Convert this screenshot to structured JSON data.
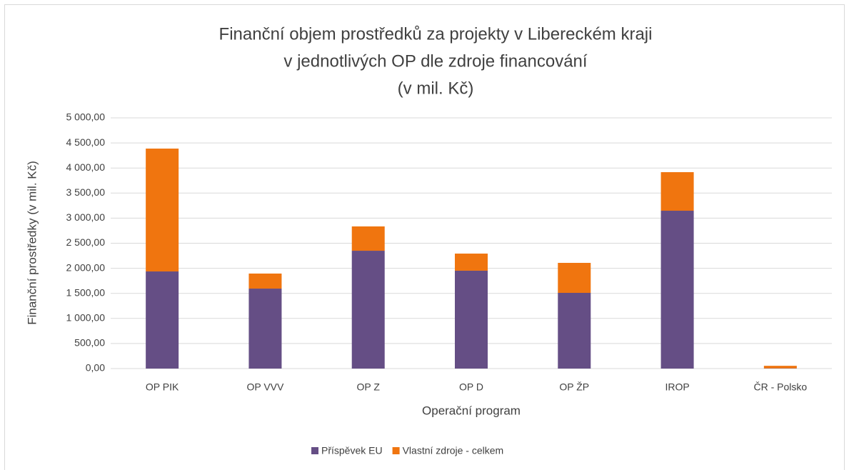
{
  "chart_data": {
    "type": "stacked_bar",
    "title": [
      "Finanční objem prostředků za projekty v Libereckém kraji",
      "v jednotlivých OP dle zdroje financování",
      "(v mil. Kč)"
    ],
    "x_label": "Operační program",
    "y_label": "Finanční prostředky (v mil. Kč)",
    "categories": [
      "OP PIK",
      "OP VVV",
      "OP Z",
      "OP D",
      "OP ŽP",
      "IROP",
      "ČR - Polsko"
    ],
    "series": [
      {
        "name": "Příspěvek EU",
        "color": "#654e85",
        "values": [
          1937,
          1595,
          2350,
          1952,
          1510,
          3148,
          5
        ]
      },
      {
        "name": "Vlastní zdroje - celkem",
        "color": "#f0750f",
        "values": [
          2450,
          300,
          485,
          341,
          598,
          769,
          50
        ]
      }
    ],
    "ylim": [
      0,
      5000
    ],
    "yticks": [
      {
        "value": 0,
        "label": "0,00"
      },
      {
        "value": 500,
        "label": "500,00"
      },
      {
        "value": 1000,
        "label": "1 000,00"
      },
      {
        "value": 1500,
        "label": "1 500,00"
      },
      {
        "value": 2000,
        "label": "2 000,00"
      },
      {
        "value": 2500,
        "label": "2 500,00"
      },
      {
        "value": 3000,
        "label": "3 000,00"
      },
      {
        "value": 3500,
        "label": "3 500,00"
      },
      {
        "value": 4000,
        "label": "4 000,00"
      },
      {
        "value": 4500,
        "label": "4 500,00"
      },
      {
        "value": 5000,
        "label": "5 000,00"
      }
    ],
    "grid": true,
    "legend": "bottom"
  }
}
